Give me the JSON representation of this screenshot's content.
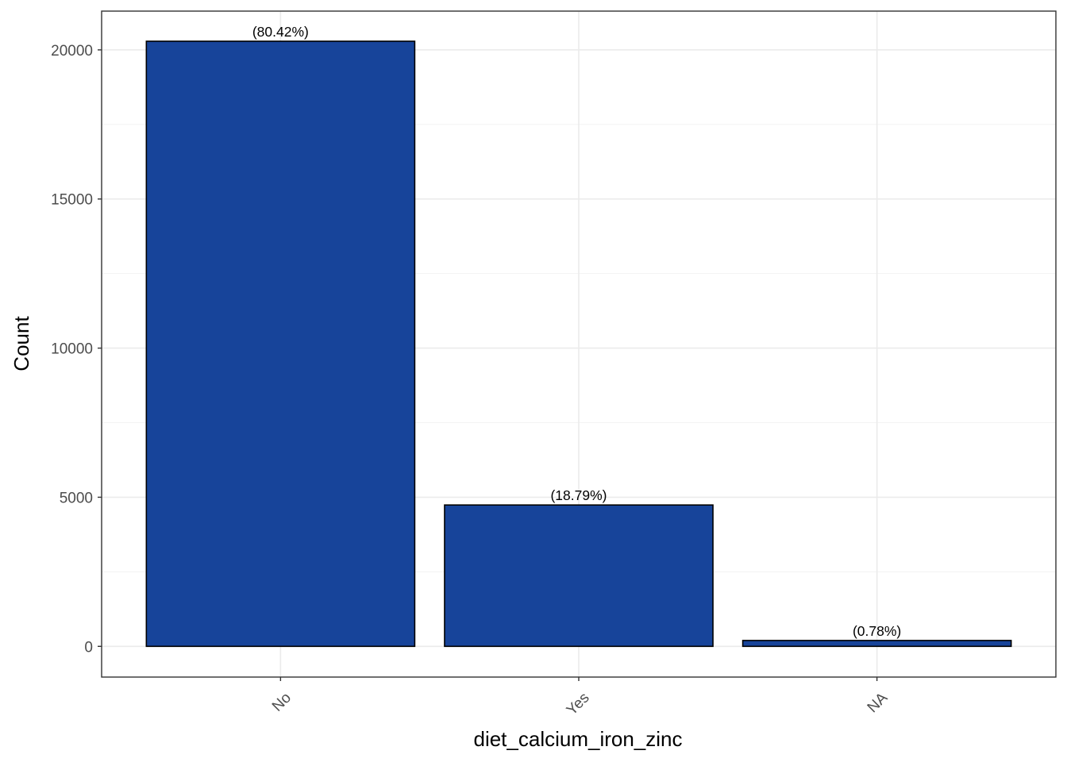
{
  "chart_data": {
    "type": "bar",
    "categories": [
      "No",
      "Yes",
      "NA"
    ],
    "values": [
      20290,
      4740,
      197
    ],
    "labels": [
      "(80.42%)",
      "(18.79%)",
      "(0.78%)"
    ],
    "xlabel": "diet_calcium_iron_zinc",
    "ylabel": "Count",
    "ylim": [
      -1030,
      21300
    ],
    "yticks": [
      0,
      5000,
      10000,
      15000,
      20000
    ],
    "ytick_labels": [
      "0",
      "5000",
      "10000",
      "15000",
      "20000"
    ],
    "grid": true,
    "legend": "none",
    "colors": {
      "bar_fill": "#17449A",
      "bar_stroke": "#000000",
      "grid_major": "#EBEBEB",
      "grid_minor": "#F3F3F3",
      "panel_border": "#333333",
      "tick_color": "#333333"
    }
  }
}
